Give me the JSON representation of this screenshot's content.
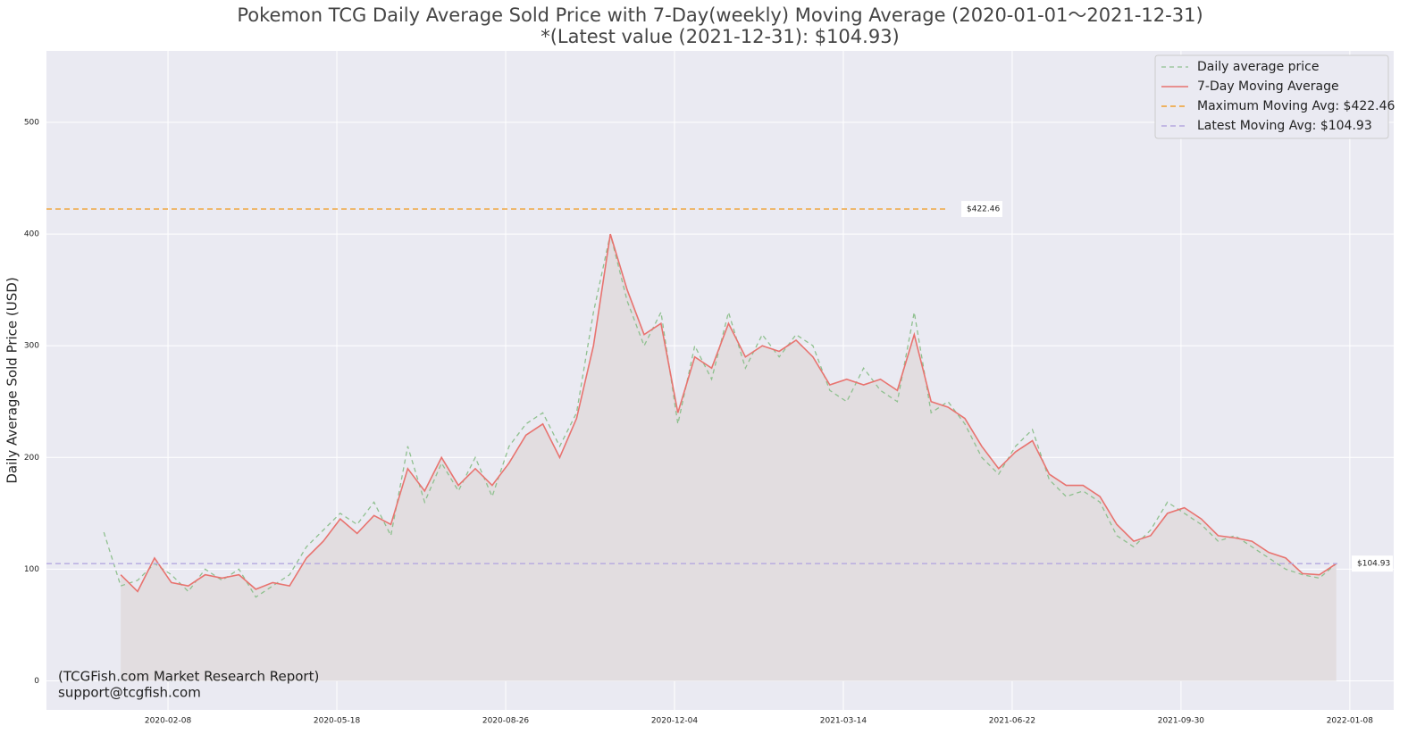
{
  "chart_data": {
    "type": "line",
    "title": "Pokemon TCG Daily Average Sold Price with 7-Day(weekly) Moving Average  (2020-01-01～2021-12-31)",
    "subtitle": "*(Latest value (2021-12-31): $104.93)",
    "y_label": "Daily Average Sold Price (USD)",
    "watermark": [
      "(TCGFish.com Market Research Report)",
      "support@tcgfish.com"
    ],
    "x": [
      "2020-01-01",
      "2020-01-11",
      "2020-01-21",
      "2020-01-31",
      "2020-02-10",
      "2020-02-20",
      "2020-03-01",
      "2020-03-11",
      "2020-03-21",
      "2020-03-31",
      "2020-04-10",
      "2020-04-20",
      "2020-04-30",
      "2020-05-10",
      "2020-05-20",
      "2020-05-30",
      "2020-06-09",
      "2020-06-19",
      "2020-06-29",
      "2020-07-09",
      "2020-07-19",
      "2020-07-29",
      "2020-08-08",
      "2020-08-18",
      "2020-08-28",
      "2020-09-07",
      "2020-09-17",
      "2020-09-27",
      "2020-10-07",
      "2020-10-17",
      "2020-10-27",
      "2020-11-06",
      "2020-11-16",
      "2020-11-26",
      "2020-12-06",
      "2020-12-16",
      "2020-12-26",
      "2021-01-05",
      "2021-01-15",
      "2021-01-25",
      "2021-02-04",
      "2021-02-14",
      "2021-02-24",
      "2021-03-06",
      "2021-03-16",
      "2021-03-26",
      "2021-04-05",
      "2021-04-15",
      "2021-04-25",
      "2021-05-05",
      "2021-05-15",
      "2021-05-25",
      "2021-06-04",
      "2021-06-14",
      "2021-06-24",
      "2021-07-04",
      "2021-07-14",
      "2021-07-24",
      "2021-08-03",
      "2021-08-13",
      "2021-08-23",
      "2021-09-02",
      "2021-09-12",
      "2021-09-22",
      "2021-10-02",
      "2021-10-12",
      "2021-10-22",
      "2021-11-01",
      "2021-11-11",
      "2021-11-21",
      "2021-12-01",
      "2021-12-11",
      "2021-12-21",
      "2021-12-31"
    ],
    "series": [
      {
        "name": "Daily average price",
        "color": "#8fc08f",
        "dash": "5,4",
        "values": [
          133,
          85,
          90,
          105,
          95,
          80,
          100,
          90,
          100,
          75,
          85,
          95,
          120,
          135,
          150,
          140,
          160,
          130,
          210,
          160,
          195,
          170,
          200,
          165,
          210,
          230,
          240,
          210,
          240,
          330,
          400,
          340,
          300,
          330,
          230,
          300,
          270,
          330,
          280,
          310,
          290,
          310,
          300,
          260,
          250,
          280,
          260,
          250,
          330,
          240,
          250,
          230,
          200,
          185,
          210,
          225,
          180,
          165,
          170,
          160,
          130,
          120,
          135,
          160,
          150,
          140,
          125,
          130,
          120,
          110,
          100,
          95,
          92,
          105
        ]
      },
      {
        "name": "7-Day Moving Average",
        "color": "#e8736f",
        "dash": "",
        "values": [
          null,
          95,
          80,
          110,
          88,
          85,
          95,
          92,
          95,
          82,
          88,
          85,
          110,
          125,
          145,
          132,
          148,
          140,
          190,
          170,
          200,
          175,
          190,
          175,
          195,
          220,
          230,
          200,
          235,
          300,
          400,
          350,
          310,
          320,
          240,
          290,
          280,
          320,
          290,
          300,
          295,
          305,
          290,
          265,
          270,
          265,
          270,
          260,
          310,
          250,
          245,
          235,
          210,
          190,
          205,
          215,
          185,
          175,
          175,
          165,
          140,
          125,
          130,
          150,
          155,
          145,
          130,
          128,
          125,
          115,
          110,
          96,
          95,
          104.93
        ]
      }
    ],
    "hlines": [
      {
        "name": "Maximum Moving Avg: $422.46",
        "value": 422.46,
        "label": "$422.46",
        "color": "#f0a030"
      },
      {
        "name": "Latest Moving Avg: $104.93",
        "value": 104.93,
        "label": "$104.93",
        "color": "#b4a8e0"
      }
    ],
    "xlim": [
      "2019-11-28",
      "2022-02-03"
    ],
    "xticks": [
      "2020-02-08",
      "2020-05-18",
      "2020-08-26",
      "2020-12-04",
      "2021-03-14",
      "2021-06-22",
      "2021-09-30",
      "2022-01-08"
    ],
    "ylim": [
      -26,
      564
    ],
    "yticks": [
      0,
      100,
      200,
      300,
      400,
      500
    ],
    "grid": true,
    "legend": "upper right"
  }
}
